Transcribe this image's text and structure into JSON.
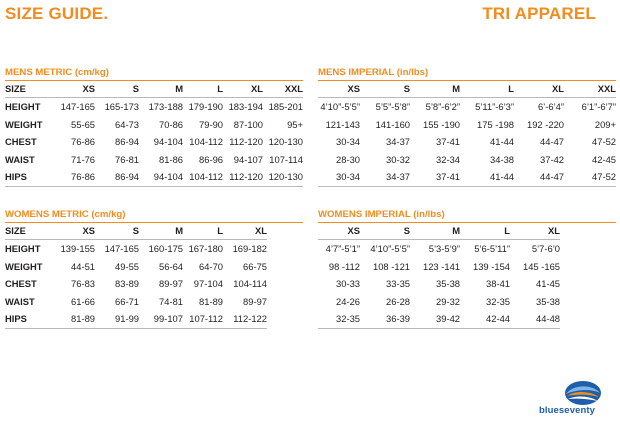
{
  "header": {
    "left_title": "SIZE GUIDE.",
    "right_title": "TRI APPAREL"
  },
  "mens_metric": {
    "title": "MENS METRIC (cm/kg)",
    "columns": [
      "SIZE",
      "XS",
      "S",
      "M",
      "L",
      "XL",
      "XXL"
    ],
    "rows": [
      [
        "HEIGHT",
        "147-165",
        "165-173",
        "173-188",
        "179-190",
        "183-194",
        "185-201"
      ],
      [
        "WEIGHT",
        "55-65",
        "64-73",
        "70-86",
        "79-90",
        "87-100",
        "95+"
      ],
      [
        "CHEST",
        "76-86",
        "86-94",
        "94-104",
        "104-112",
        "112-120",
        "120-130"
      ],
      [
        "WAIST",
        "71-76",
        "76-81",
        "81-86",
        "86-96",
        "94-107",
        "107-114"
      ],
      [
        "HIPS",
        "76-86",
        "86-94",
        "94-104",
        "104-112",
        "112-120",
        "120-130"
      ]
    ]
  },
  "mens_imperial": {
    "title": "MENS IMPERIAL (in/lbs)",
    "columns": [
      "XS",
      "S",
      "M",
      "L",
      "XL",
      "XXL"
    ],
    "rows": [
      [
        "4’10”-5’5”",
        "5’5”-5’8”",
        "5’8”-6’2”",
        "5’11”-6’3”",
        "6’-6’4”",
        "6’1”-6’7”"
      ],
      [
        "121-143",
        "141-160",
        "155 -190",
        "175 -198",
        "192 -220",
        "209+"
      ],
      [
        "30-34",
        "34-37",
        "37-41",
        "41-44",
        "44-47",
        "47-52"
      ],
      [
        "28-30",
        "30-32",
        "32-34",
        "34-38",
        "37-42",
        "42-45"
      ],
      [
        "30-34",
        "34-37",
        "37-41",
        "41-44",
        "44-47",
        "47-52"
      ]
    ]
  },
  "womens_metric": {
    "title": "WOMENS METRIC (cm/kg)",
    "columns": [
      "SIZE",
      "XS",
      "S",
      "M",
      "L",
      "XL"
    ],
    "rows": [
      [
        "HEIGHT",
        "139-155",
        "147-165",
        "160-175",
        "167-180",
        "169-182"
      ],
      [
        "WEIGHT",
        "44-51",
        "49-55",
        "56-64",
        "64-70",
        "66-75"
      ],
      [
        "CHEST",
        "76-83",
        "83-89",
        "89-97",
        "97-104",
        "104-114"
      ],
      [
        "WAIST",
        "61-66",
        "66-71",
        "74-81",
        "81-89",
        "89-97"
      ],
      [
        "HIPS",
        "81-89",
        "91-99",
        "99-107",
        "107-112",
        "112-122"
      ]
    ]
  },
  "womens_imperial": {
    "title": "WOMENS IMPERIAL (in/lbs)",
    "columns": [
      "XS",
      "S",
      "M",
      "L",
      "XL"
    ],
    "rows": [
      [
        "4’7”-5’1”",
        "4’10”-5’5”",
        "5’3-5’9”",
        "5’6-5’11”",
        "5’7-6’0"
      ],
      [
        "98 -112",
        "108 -121",
        "123 -141",
        "139 -154",
        "145 -165"
      ],
      [
        "30-33",
        "33-35",
        "35-38",
        "38-41",
        "41-45"
      ],
      [
        "24-26",
        "26-28",
        "29-32",
        "32-35",
        "35-38"
      ],
      [
        "32-35",
        "36-39",
        "39-42",
        "42-44",
        "44-48"
      ]
    ]
  },
  "logo": {
    "text": "blueseventy",
    "icon": "blueseventy-swirl-logo",
    "blue": "#1f5ea8",
    "orange": "#f28c1f"
  },
  "colors": {
    "accent": "#f28c1f",
    "text": "#231f20",
    "rule": "#b9b9b9"
  }
}
